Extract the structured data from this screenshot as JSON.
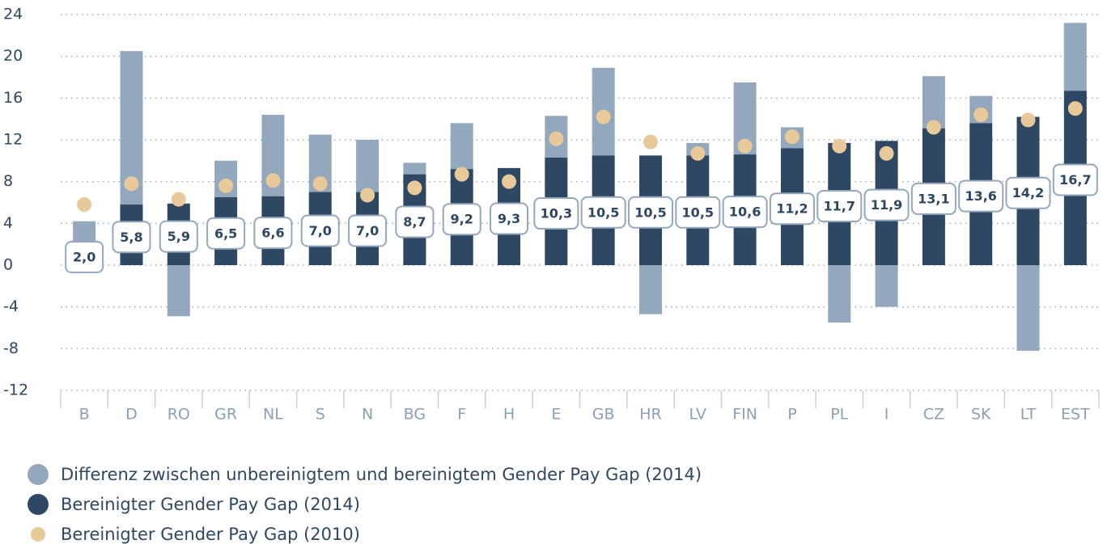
{
  "chart_data": {
    "type": "bar",
    "categories": [
      "B",
      "D",
      "RO",
      "GR",
      "NL",
      "S",
      "N",
      "BG",
      "F",
      "H",
      "E",
      "GB",
      "HR",
      "LV",
      "FIN",
      "P",
      "PL",
      "I",
      "CZ",
      "SK",
      "LT",
      "EST"
    ],
    "series": [
      {
        "name": "Differenz zwischen unbereinigtem und bereinigtem Gender Pay Gap (2014)",
        "color": "#94a8bd",
        "values": [
          2.2,
          14.7,
          -4.9,
          3.5,
          7.8,
          5.5,
          5.0,
          1.1,
          4.4,
          0,
          4.0,
          8.4,
          -4.7,
          1.2,
          6.9,
          2.0,
          -5.5,
          -4.0,
          5.0,
          2.6,
          -8.2,
          6.5
        ]
      },
      {
        "name": "Bereinigter Gender Pay Gap (2014)",
        "color": "#2e4762",
        "values": [
          2.0,
          5.8,
          5.9,
          6.5,
          6.6,
          7.0,
          7.0,
          8.7,
          9.2,
          9.3,
          10.3,
          10.5,
          10.5,
          10.5,
          10.6,
          11.2,
          11.7,
          11.9,
          13.1,
          13.6,
          14.2,
          16.7
        ],
        "value_labels": [
          "2,0",
          "5,8",
          "5,9",
          "6,5",
          "6,6",
          "7,0",
          "7,0",
          "8,7",
          "9,2",
          "9,3",
          "10,3",
          "10,5",
          "10,5",
          "10,5",
          "10,6",
          "11,2",
          "11,7",
          "11,9",
          "13,1",
          "13,6",
          "14,2",
          "16,7"
        ]
      },
      {
        "name": "Bereinigter Gender Pay Gap (2010)",
        "color": "#e8c99a",
        "values": [
          5.8,
          7.8,
          6.3,
          7.6,
          8.1,
          7.8,
          6.7,
          7.4,
          8.7,
          8.0,
          12.1,
          14.2,
          11.8,
          10.7,
          11.4,
          12.3,
          11.4,
          10.7,
          13.2,
          14.4,
          13.9,
          15.0
        ]
      }
    ],
    "ylim": [
      -12,
      24
    ],
    "yticks": [
      -12,
      -8,
      -4,
      0,
      4,
      8,
      12,
      16,
      20,
      24
    ],
    "grid": true
  }
}
